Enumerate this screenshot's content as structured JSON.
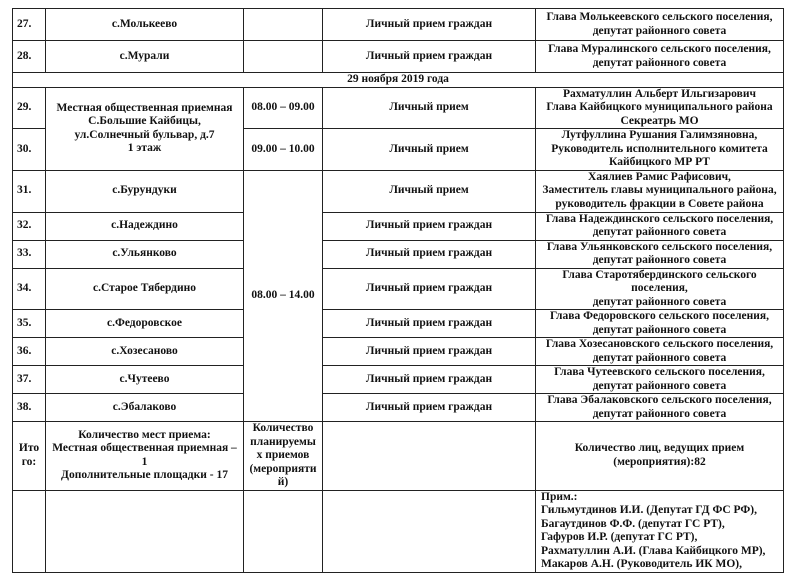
{
  "rows_before": [
    {
      "num": "27.",
      "place": "с.Молькеево",
      "event": "Личный прием граждан",
      "person": [
        "Глава Молькеевского сельского поселения,",
        "депутат районного совета"
      ]
    },
    {
      "num": "28.",
      "place": "с.Мурали",
      "event": "Личный прием граждан",
      "person": [
        "Глава Муралинского сельского поселения,",
        "депутат районного совета"
      ]
    }
  ],
  "date_header": "29 ноября 2019 года",
  "office": {
    "place": [
      "Местная общественная приемная",
      "С.Большие Кайбицы,",
      "ул.Солнечный бульвар, д.7",
      "1 этаж"
    ],
    "rows": [
      {
        "num": "29.",
        "time": "08.00 – 09.00",
        "event": "Личный прием",
        "name": "Рахматуллин Альберт Ильгизарович",
        "person": [
          "Глава Кайбицкого муниципального района",
          "Секреатрь МО"
        ]
      },
      {
        "num": "30.",
        "time": "09.00 – 10.00",
        "event": "Личный прием",
        "name": "Лутфуллина Рушания Галимзяновна,",
        "person": [
          "Руководитель исполнительного комитета",
          "Кайбицкого МР РТ"
        ]
      }
    ]
  },
  "village_time": "08.00 – 14.00",
  "village_rows": [
    {
      "num": "31.",
      "place": "с.Бурундуки",
      "event": "Личный прием",
      "name": "Хаялиев Рамис Рафисович,",
      "person": [
        "Заместитель главы муниципального района,",
        "руководитель фракции в Совете района"
      ]
    },
    {
      "num": "32.",
      "place": "с.Надеждино",
      "event": "Личный прием граждан",
      "person": [
        "Глава Надеждинского сельского поселения,",
        "депутат районного совета"
      ]
    },
    {
      "num": "33.",
      "place": "с.Ульянково",
      "event": "Личный прием граждан",
      "person": [
        "Глава Ульянковского сельского поселения,",
        "депутат районного совета"
      ]
    },
    {
      "num": "34.",
      "place": "с.Старое Тябердино",
      "event": "Личный прием граждан",
      "person": [
        "Глава Старотябердинского сельского поселения,",
        "депутат районного совета"
      ]
    },
    {
      "num": "35.",
      "place": "с.Федоровское",
      "event": "Личный прием граждан",
      "person": [
        "Глава Федоровского сельского поселения,",
        "депутат районного совета"
      ]
    },
    {
      "num": "36.",
      "place": "с.Хозесаново",
      "event": "Личный прием граждан",
      "person": [
        "Глава Хозесановского сельского поселения,",
        "депутат районного совета"
      ]
    },
    {
      "num": "37.",
      "place": "с.Чутеево",
      "event": "Личный прием граждан",
      "person": [
        "Глава Чутеевского сельского поселения,",
        "депутат районного совета"
      ]
    },
    {
      "num": "38.",
      "place": "с.Эбалаково",
      "event": "Личный прием граждан",
      "person": [
        "Глава Эбалаковского сельского поселения,",
        "депутат районного совета"
      ]
    }
  ],
  "totals": {
    "label": [
      "Ито",
      "го:"
    ],
    "places_title": "Количество мест приема:",
    "places_lines": [
      "Местная общественная приемная –",
      "1",
      "Дополнительные площадки  - 17"
    ],
    "planned": [
      "Количество",
      "планируемы",
      "х приемов",
      "(мероприяти",
      "й)"
    ],
    "persons": [
      "Количество лиц, ведущих прием",
      "(мероприятия):82"
    ]
  },
  "note": [
    "Прим.:",
    "Гильмутдинов И.И. (Депутат ГД ФС РФ),",
    "Багаутдинов Ф.Ф. (депутат ГС РТ),",
    "Гафуров И.Р. (депутат ГС РТ),",
    "Рахматуллин А.И. (Глава Кайбицкого МР),",
    "Макаров А.Н. (Руководитель ИК МО),"
  ]
}
